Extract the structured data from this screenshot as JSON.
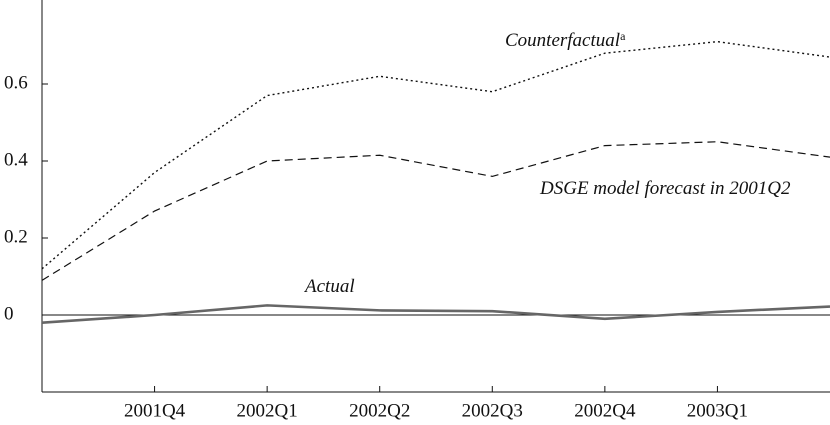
{
  "chart_data": {
    "type": "line",
    "categories": [
      null,
      "2001Q4",
      "2002Q1",
      "2002Q2",
      "2002Q3",
      "2002Q4",
      "2003Q1",
      null
    ],
    "ylim": [
      -0.2,
      0.8
    ],
    "yticks": [
      0,
      0.2,
      0.4,
      0.6
    ],
    "zero_line": true,
    "series": [
      {
        "name": "Counterfactual",
        "name_superscript": "a",
        "color": "#111111",
        "dash": "dotted",
        "values": [
          0.12,
          0.37,
          0.57,
          0.62,
          0.58,
          0.68,
          0.71,
          0.67
        ]
      },
      {
        "name": "DSGE model forecast in 2001Q2",
        "color": "#111111",
        "dash": "dashed",
        "values": [
          0.09,
          0.27,
          0.4,
          0.415,
          0.36,
          0.44,
          0.45,
          0.41
        ]
      },
      {
        "name": "Actual",
        "color": "#666666",
        "dash": "solid",
        "values": [
          -0.02,
          0.0,
          0.025,
          0.012,
          0.01,
          -0.01,
          0.008,
          0.022
        ]
      }
    ]
  }
}
